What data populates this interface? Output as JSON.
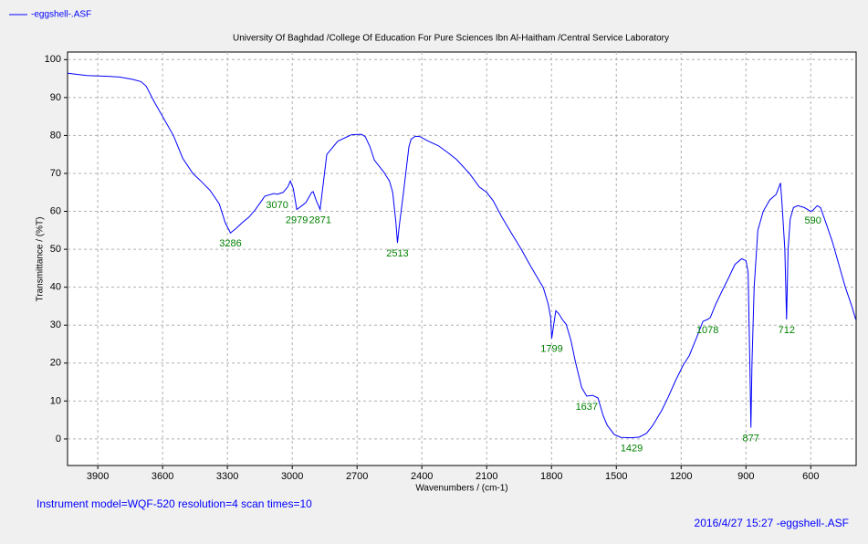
{
  "chart_data": {
    "type": "line",
    "legend_label": "-eggshell-.ASF",
    "title": "University Of Baghdad /College Of Education For Pure Sciences Ibn Al-Haitham /Central Service Laboratory",
    "xlabel": "Wavenumbers / (cm-1)",
    "ylabel": "Transmittance / (%T)",
    "footer_left": "Instrument model=WQF-520 resolution=4 scan times=10",
    "footer_right": "2016/4/27 15:27 -eggshell-.ASF",
    "xlim": [
      4040,
      390
    ],
    "ylim": [
      -7,
      102
    ],
    "xticks": [
      3900,
      3600,
      3300,
      3000,
      2700,
      2400,
      2100,
      1800,
      1500,
      1200,
      900,
      600
    ],
    "yticks": [
      0,
      10,
      20,
      30,
      40,
      50,
      60,
      70,
      80,
      90,
      100
    ],
    "grid": true,
    "x": [
      4040,
      3950,
      3850,
      3800,
      3740,
      3700,
      3676,
      3640,
      3600,
      3550,
      3507,
      3460,
      3423,
      3380,
      3338,
      3310,
      3286,
      3260,
      3232,
      3200,
      3170,
      3127,
      3085,
      3070,
      3042,
      3020,
      3009,
      2995,
      2979,
      2955,
      2937,
      2910,
      2903,
      2890,
      2871,
      2855,
      2840,
      2789,
      2726,
      2680,
      2662,
      2640,
      2620,
      2578,
      2550,
      2535,
      2520,
      2513,
      2505,
      2485,
      2460,
      2450,
      2430,
      2409,
      2370,
      2324,
      2280,
      2240,
      2180,
      2134,
      2100,
      2070,
      2030,
      1986,
      1940,
      1901,
      1860,
      1838,
      1815,
      1804,
      1799,
      1790,
      1780,
      1766,
      1750,
      1732,
      1710,
      1690,
      1660,
      1637,
      1610,
      1585,
      1560,
      1542,
      1510,
      1479,
      1429,
      1394,
      1360,
      1331,
      1290,
      1260,
      1225,
      1190,
      1162,
      1130,
      1099,
      1078,
      1065,
      1040,
      1014,
      980,
      951,
      920,
      900,
      890,
      882,
      877,
      872,
      862,
      845,
      820,
      790,
      760,
      740,
      733,
      720,
      712,
      705,
      695,
      680,
      660,
      630,
      600,
      590,
      570,
      555,
      530,
      500,
      470,
      440,
      410,
      392
    ],
    "series": [
      {
        "name": "-eggshell-.ASF",
        "color": "#0000ff",
        "values": [
          96.4,
          95.8,
          95.6,
          95.4,
          94.8,
          94.2,
          93,
          89,
          85,
          80,
          74,
          70,
          68,
          65.5,
          62,
          57,
          54.3,
          55.5,
          57,
          58.5,
          60.5,
          64,
          64.7,
          64.5,
          65,
          66.5,
          68,
          66,
          60.5,
          61.5,
          62.3,
          65,
          65.2,
          63,
          60.5,
          68,
          75,
          78.5,
          80.2,
          80.3,
          79.7,
          77,
          73.5,
          70.5,
          68,
          65,
          57,
          51.7,
          56,
          65,
          77,
          79,
          79.8,
          79.7,
          78.5,
          77.3,
          75.5,
          73.7,
          70,
          66.4,
          65,
          62.8,
          58.5,
          54.3,
          50,
          46,
          42,
          39.9,
          35.5,
          32,
          26.5,
          30,
          33.8,
          33,
          31.5,
          30.2,
          26,
          20.5,
          13.5,
          11.3,
          11.5,
          10.8,
          6,
          3.6,
          1.2,
          0.4,
          0.3,
          0.5,
          1.5,
          3.6,
          7.5,
          11,
          15.5,
          19.5,
          22,
          26.5,
          31,
          31.5,
          32,
          35.5,
          38.6,
          42.5,
          46,
          47.5,
          47,
          44,
          20,
          3,
          20,
          40,
          55,
          60,
          63,
          64.5,
          67.5,
          62,
          50,
          31.5,
          50,
          58,
          61,
          61.5,
          61,
          60,
          60.3,
          61.5,
          61,
          57,
          52,
          46,
          40,
          35,
          31.5
        ]
      }
    ],
    "annotation_color": "#008000",
    "annotations": [
      {
        "x": 3286,
        "y": 54.3
      },
      {
        "x": 3070,
        "y": 64.5
      },
      {
        "x": 2979,
        "y": 60.5
      },
      {
        "x": 2871,
        "y": 60.5
      },
      {
        "x": 2513,
        "y": 51.7
      },
      {
        "x": 1799,
        "y": 26.5
      },
      {
        "x": 1637,
        "y": 11.3
      },
      {
        "x": 1429,
        "y": 0.3
      },
      {
        "x": 1078,
        "y": 31.5
      },
      {
        "x": 877,
        "y": 3
      },
      {
        "x": 712,
        "y": 31.5
      },
      {
        "x": 590,
        "y": 60.3
      }
    ]
  }
}
